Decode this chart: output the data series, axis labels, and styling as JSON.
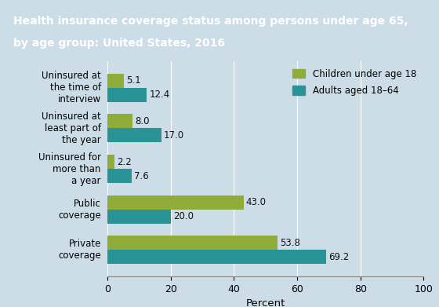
{
  "title_line1": "Health insurance coverage status among persons under age 65,",
  "title_line2": "by age group: United States, 2016",
  "title_bg_color": "#3d4a6b",
  "title_text_color": "#ffffff",
  "bg_color": "#ccdde8",
  "categories": [
    "Uninsured at\nthe time of\ninterview",
    "Uninsured at\nleast part of\nthe year",
    "Uninsured for\nmore than\na year",
    "Public\ncoverage",
    "Private\ncoverage"
  ],
  "children_values": [
    5.1,
    8.0,
    2.2,
    43.0,
    53.8
  ],
  "adults_values": [
    12.4,
    17.0,
    7.6,
    20.0,
    69.2
  ],
  "children_color": "#8fac38",
  "adults_color": "#2a9396",
  "xlabel": "Percent",
  "xlim": [
    0,
    100
  ],
  "xticks": [
    0,
    20,
    40,
    60,
    80,
    100
  ],
  "legend_labels": [
    "Children under age 18",
    "Adults aged 18–64"
  ],
  "bar_height": 0.35,
  "value_fontsize": 8.5,
  "label_fontsize": 8.5,
  "xlabel_fontsize": 9.5
}
